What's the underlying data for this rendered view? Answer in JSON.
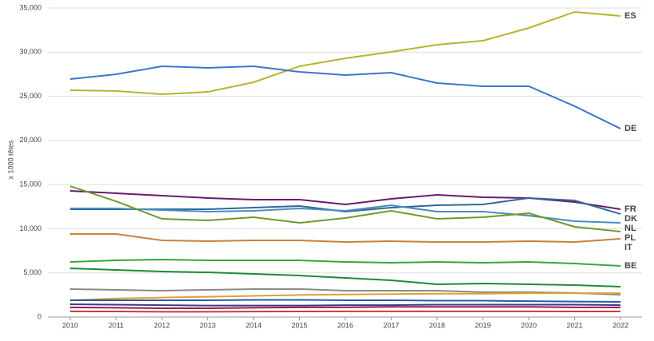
{
  "chart_data": {
    "type": "line",
    "y_label": "x 1000 têtes",
    "x": [
      2010,
      2011,
      2012,
      2013,
      2014,
      2015,
      2016,
      2017,
      2018,
      2019,
      2020,
      2021,
      2022
    ],
    "xlim": [
      2010,
      2022
    ],
    "xticks": [
      2010,
      2011,
      2012,
      2013,
      2014,
      2015,
      2016,
      2017,
      2018,
      2019,
      2020,
      2021,
      2022
    ],
    "ylim": [
      0,
      35000
    ],
    "yticks": [
      0,
      {
        "value": 5000,
        "label": "5,000"
      },
      {
        "value": 10000,
        "label": "10,000"
      },
      {
        "value": 15000,
        "label": "15,000"
      },
      {
        "value": 20000,
        "label": "20,000"
      },
      {
        "value": 25000,
        "label": "25,000"
      },
      {
        "value": 30000,
        "label": "30,000"
      },
      {
        "value": 35000,
        "label": "35,000"
      }
    ],
    "grid": true,
    "series": [
      {
        "name": "ES",
        "color": "#b5b52a",
        "values": [
          25680,
          25600,
          25230,
          25500,
          26590,
          28400,
          29300,
          30030,
          30840,
          31290,
          32740,
          34550,
          34100
        ]
      },
      {
        "name": "DE",
        "color": "#3f74d0",
        "values": [
          26950,
          27490,
          28400,
          28220,
          28400,
          27760,
          27400,
          27670,
          26500,
          26140,
          26140,
          23880,
          21340
        ]
      },
      {
        "name": "FR",
        "color": "#6a1a6e",
        "values": [
          14290,
          14020,
          13750,
          13480,
          13300,
          13300,
          12750,
          13380,
          13840,
          13570,
          13480,
          13020,
          12210
        ]
      },
      {
        "name": "DK",
        "color": "#2f6a9a",
        "values": [
          12210,
          12210,
          12210,
          12210,
          12390,
          12570,
          11940,
          12390,
          12660,
          12750,
          13480,
          13200,
          11670
        ]
      },
      {
        "name": "NL",
        "color": "#4a8bbd",
        "values": [
          12300,
          12300,
          12120,
          11940,
          12030,
          12300,
          12030,
          12660,
          11940,
          11940,
          11490,
          10850,
          10670
        ]
      },
      {
        "name": "PL",
        "color": "#6e9a2a",
        "values": [
          14830,
          13110,
          11120,
          10940,
          11300,
          10670,
          11210,
          12030,
          11120,
          11300,
          11760,
          10220,
          9680
        ]
      },
      {
        "name": "IT",
        "color": "#c8813a",
        "values": [
          9410,
          9410,
          8680,
          8590,
          8680,
          8680,
          8500,
          8590,
          8500,
          8500,
          8590,
          8500,
          8860
        ]
      },
      {
        "name": "BE",
        "color": "#3aa63a",
        "values": [
          6240,
          6420,
          6510,
          6420,
          6420,
          6420,
          6240,
          6150,
          6240,
          6150,
          6240,
          6060,
          5790
        ]
      },
      {
        "color": "#1f8a3a",
        "values": [
          5520,
          5340,
          5150,
          5060,
          4880,
          4700,
          4430,
          4160,
          3710,
          3800,
          3710,
          3620,
          3440
        ]
      },
      {
        "color": "#8a8a8a",
        "values": [
          3170,
          3080,
          2990,
          3080,
          3170,
          3170,
          2990,
          2990,
          2990,
          2810,
          2810,
          2720,
          2530
        ]
      },
      {
        "color": "#e0a030",
        "values": [
          1900,
          2100,
          2200,
          2300,
          2400,
          2500,
          2550,
          2600,
          2650,
          2650,
          2700,
          2700,
          2700
        ]
      },
      {
        "color": "#2a5aa8",
        "values": [
          1900,
          1900,
          1900,
          1900,
          1950,
          1950,
          1900,
          1900,
          1850,
          1850,
          1800,
          1750,
          1720
        ]
      },
      {
        "color": "#a01a50",
        "values": [
          1100,
          1050,
          1000,
          1000,
          1050,
          1100,
          1100,
          1150,
          1150,
          1150,
          1150,
          1100,
          1090
        ]
      },
      {
        "color": "#3a3a8a",
        "values": [
          1450,
          1400,
          1350,
          1300,
          1300,
          1300,
          1350,
          1350,
          1400,
          1400,
          1400,
          1400,
          1350
        ]
      },
      {
        "color": "#c04040",
        "values": [
          650,
          630,
          600,
          600,
          620,
          630,
          640,
          650,
          650,
          640,
          640,
          630,
          630
        ]
      }
    ]
  }
}
